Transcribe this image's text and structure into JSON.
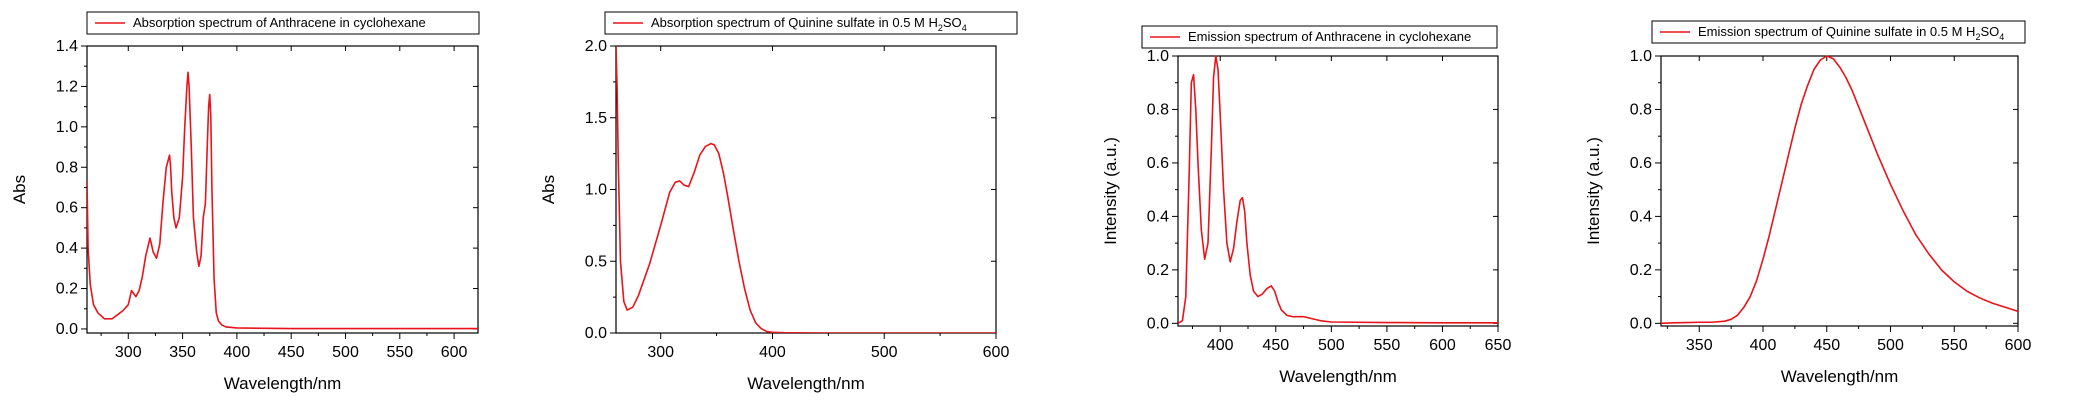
{
  "chart_data": [
    {
      "type": "line",
      "legend": "Absorption spectrum of Anthracene in cyclohexane",
      "legend_sub": "",
      "legend_tail": "",
      "xlabel": "Wavelength/nm",
      "ylabel": "Abs",
      "xlim": [
        262,
        622
      ],
      "ylim": [
        -0.02,
        1.4
      ],
      "xticks": [
        300,
        350,
        400,
        450,
        500,
        550,
        600
      ],
      "yticks": [
        0.0,
        0.2,
        0.4,
        0.6,
        0.8,
        1.0,
        1.2,
        1.4
      ],
      "ytick_decimals": 1,
      "legend_placement": "top-left",
      "color": "#e8141c",
      "x": [
        262,
        263,
        265,
        268,
        272,
        278,
        285,
        290,
        295,
        300,
        303,
        307,
        310,
        313,
        316,
        320,
        323,
        326,
        329,
        332,
        335,
        338,
        339,
        340,
        342,
        344,
        347,
        350,
        352,
        354,
        355,
        356,
        358,
        360,
        363,
        365,
        367,
        369,
        371,
        373,
        374,
        375,
        376,
        377,
        379,
        381,
        383,
        386,
        390,
        400,
        450,
        500,
        550,
        600,
        622
      ],
      "y": [
        0.73,
        0.4,
        0.22,
        0.12,
        0.08,
        0.05,
        0.05,
        0.07,
        0.09,
        0.12,
        0.19,
        0.16,
        0.19,
        0.26,
        0.36,
        0.45,
        0.38,
        0.35,
        0.42,
        0.63,
        0.8,
        0.86,
        0.8,
        0.68,
        0.55,
        0.5,
        0.55,
        0.75,
        1.0,
        1.2,
        1.27,
        1.2,
        0.9,
        0.55,
        0.38,
        0.31,
        0.36,
        0.55,
        0.62,
        0.95,
        1.1,
        1.16,
        1.05,
        0.7,
        0.25,
        0.08,
        0.04,
        0.02,
        0.01,
        0.005,
        0.002,
        0.002,
        0.002,
        0.002,
        0.002
      ]
    },
    {
      "type": "line",
      "legend": "Absorption spectrum of Quinine sulfate in 0.5 M H",
      "legend_sub": "2",
      "legend_tail": "SO",
      "legend_sub2": "4",
      "xlabel": "Wavelength/nm",
      "ylabel": "Abs",
      "xlim": [
        260,
        600
      ],
      "ylim": [
        0,
        2.0
      ],
      "xticks": [
        300,
        400,
        500,
        600
      ],
      "yticks": [
        0.0,
        0.5,
        1.0,
        1.5,
        2.0
      ],
      "ytick_decimals": 1,
      "legend_placement": "top-left",
      "color": "#e8141c",
      "x": [
        260,
        261,
        262,
        264,
        267,
        270,
        275,
        280,
        290,
        300,
        308,
        313,
        317,
        321,
        325,
        330,
        335,
        340,
        345,
        348,
        352,
        356,
        360,
        365,
        370,
        375,
        380,
        385,
        390,
        395,
        400,
        410,
        420,
        450,
        500,
        550,
        600
      ],
      "y": [
        2.0,
        1.7,
        1.2,
        0.5,
        0.22,
        0.16,
        0.18,
        0.26,
        0.48,
        0.75,
        0.98,
        1.05,
        1.06,
        1.03,
        1.02,
        1.12,
        1.24,
        1.3,
        1.32,
        1.31,
        1.25,
        1.12,
        0.95,
        0.72,
        0.5,
        0.31,
        0.16,
        0.07,
        0.03,
        0.01,
        0.005,
        0.002,
        0.001,
        0.0,
        0.0,
        0.0,
        0.0
      ]
    },
    {
      "type": "line",
      "legend": "Emission spectrum of Anthracene in cyclohexane",
      "legend_sub": "",
      "legend_tail": "",
      "xlabel": "Wavelength/nm",
      "ylabel": "Intensity (a.u.)",
      "xlim": [
        362,
        650
      ],
      "ylim": [
        -0.01,
        1.0
      ],
      "xticks": [
        400,
        450,
        500,
        550,
        600,
        650
      ],
      "yticks": [
        0.0,
        0.2,
        0.4,
        0.6,
        0.8,
        1.0
      ],
      "ytick_decimals": 1,
      "legend_placement": "top-left",
      "color": "#e8141c",
      "x": [
        362,
        366,
        369,
        372,
        374,
        376,
        378,
        380,
        383,
        386,
        389,
        392,
        394,
        396,
        398,
        400,
        403,
        406,
        409,
        412,
        415,
        418,
        420,
        422,
        424,
        427,
        430,
        434,
        438,
        442,
        446,
        449,
        452,
        455,
        460,
        465,
        470,
        475,
        480,
        490,
        500,
        550,
        600,
        650
      ],
      "y": [
        0.0,
        0.01,
        0.1,
        0.55,
        0.9,
        0.93,
        0.8,
        0.6,
        0.35,
        0.24,
        0.3,
        0.65,
        0.92,
        1.0,
        0.95,
        0.78,
        0.5,
        0.3,
        0.23,
        0.28,
        0.38,
        0.46,
        0.47,
        0.42,
        0.3,
        0.18,
        0.12,
        0.1,
        0.11,
        0.13,
        0.14,
        0.12,
        0.08,
        0.05,
        0.03,
        0.025,
        0.025,
        0.025,
        0.02,
        0.01,
        0.005,
        0.003,
        0.002,
        0.002
      ]
    },
    {
      "type": "line",
      "legend": "Emission spectrum of Quinine sulfate in 0.5 M H",
      "legend_sub": "2",
      "legend_tail": "SO",
      "legend_sub2": "4",
      "xlabel": "Wavelength/nm",
      "ylabel": "Intensity (a.u.)",
      "xlim": [
        320,
        600
      ],
      "ylim": [
        -0.01,
        1.0
      ],
      "xticks": [
        350,
        400,
        450,
        500,
        550,
        600
      ],
      "yticks": [
        0.0,
        0.2,
        0.4,
        0.6,
        0.8,
        1.0
      ],
      "ytick_decimals": 1,
      "legend_placement": "top-left",
      "color": "#e8141c",
      "x": [
        320,
        330,
        340,
        350,
        360,
        370,
        375,
        380,
        385,
        390,
        395,
        400,
        405,
        410,
        415,
        420,
        425,
        430,
        435,
        440,
        445,
        450,
        455,
        460,
        465,
        470,
        475,
        480,
        490,
        500,
        510,
        520,
        530,
        540,
        550,
        560,
        570,
        580,
        590,
        600
      ],
      "y": [
        0.0,
        0.002,
        0.003,
        0.004,
        0.004,
        0.008,
        0.015,
        0.03,
        0.06,
        0.1,
        0.16,
        0.24,
        0.33,
        0.43,
        0.53,
        0.63,
        0.73,
        0.82,
        0.89,
        0.95,
        0.985,
        1.0,
        0.99,
        0.96,
        0.92,
        0.87,
        0.81,
        0.75,
        0.63,
        0.52,
        0.42,
        0.33,
        0.26,
        0.2,
        0.155,
        0.12,
        0.095,
        0.075,
        0.06,
        0.045
      ]
    }
  ]
}
